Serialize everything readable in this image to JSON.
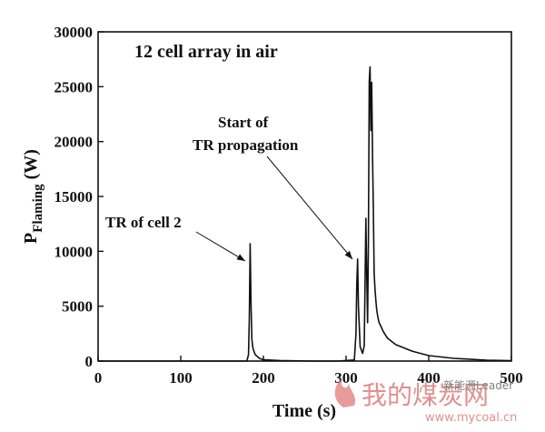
{
  "chart_data": {
    "type": "line",
    "title": "12 cell array in air",
    "xlabel": "Time (s)",
    "ylabel_main": "P",
    "ylabel_sub": "Flaming",
    "ylabel_unit": " (W)",
    "xlim": [
      0,
      500
    ],
    "ylim": [
      0,
      30000
    ],
    "xticks": [
      0,
      100,
      200,
      300,
      400,
      500
    ],
    "yticks": [
      0,
      5000,
      10000,
      15000,
      20000,
      25000,
      30000
    ],
    "xtick_labels": [
      "0",
      "100",
      "200",
      "300",
      "400",
      "500"
    ],
    "ytick_labels": [
      "0",
      "5000",
      "10000",
      "15000",
      "20000",
      "25000",
      "30000"
    ],
    "grid": false,
    "series": [
      {
        "color": "#111111",
        "x": [
          0,
          150,
          180,
          182,
          183,
          184,
          185,
          186,
          187,
          188,
          190,
          195,
          200,
          220,
          260,
          290,
          310,
          312,
          313,
          314,
          315,
          317,
          320,
          322,
          324,
          325,
          326,
          327,
          328,
          329,
          330,
          331,
          332,
          333,
          334,
          335,
          336,
          337,
          338,
          339,
          340,
          342,
          345,
          350,
          360,
          380,
          400,
          430,
          470,
          500
        ],
        "y": [
          0,
          0,
          0,
          600,
          4000,
          10700,
          5000,
          2000,
          1300,
          1000,
          600,
          250,
          120,
          50,
          0,
          0,
          100,
          2500,
          7000,
          9300,
          5000,
          1300,
          700,
          1400,
          13000,
          7500,
          3500,
          11000,
          25500,
          26800,
          21000,
          25400,
          19000,
          14000,
          8000,
          6500,
          5500,
          4700,
          4200,
          3800,
          3500,
          3200,
          2700,
          2100,
          1500,
          900,
          500,
          250,
          80,
          30
        ]
      }
    ],
    "annotations": [
      {
        "text": "TR of cell 2",
        "x": 185,
        "y": 9000
      },
      {
        "text": "Start of",
        "x": 313,
        "y": 9000
      },
      {
        "text": "TR propagation",
        "x": 313,
        "y": 9000
      }
    ]
  },
  "watermark": {
    "text_cn": "我的煤炭网",
    "text_leader": "新能源Leader",
    "text_url": "www.mycoal.cn",
    "color": "#d96a6a"
  }
}
